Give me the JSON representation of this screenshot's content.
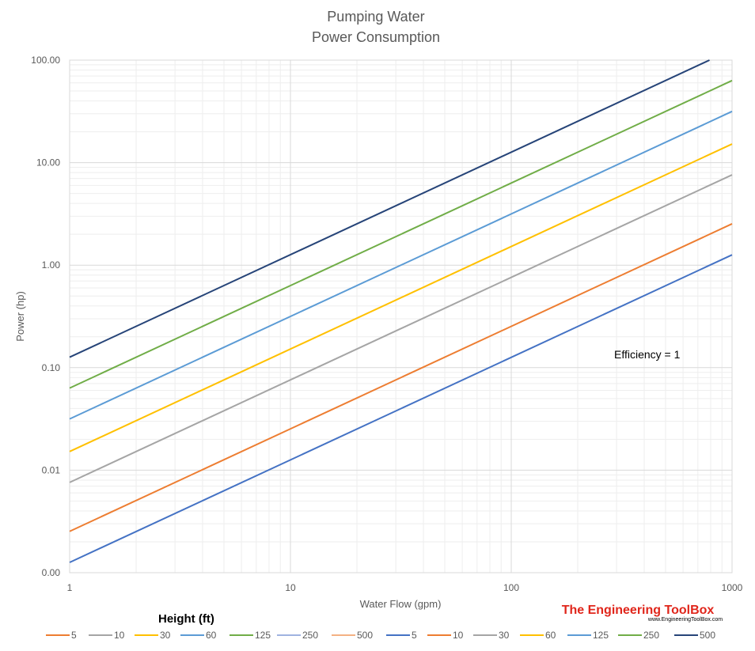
{
  "chart_data": {
    "type": "line",
    "title_lines": [
      "Pumping Water",
      "Power Consumption"
    ],
    "xlabel": "Water Flow (gpm)",
    "ylabel": "Power (hp)",
    "x_scale": "log",
    "y_scale": "log",
    "xlim": [
      1,
      1000
    ],
    "ylim": [
      0.001,
      100
    ],
    "x_ticks": [
      1,
      10,
      100,
      1000
    ],
    "x_tick_labels": [
      "1",
      "10",
      "100",
      "1000"
    ],
    "y_ticks": [
      0.001,
      0.01,
      0.1,
      1,
      10,
      100
    ],
    "y_tick_labels": [
      "0.00",
      "0.01",
      "0.10",
      "1.00",
      "10.00",
      "100.00"
    ],
    "grid": true,
    "annotation": "Efficiency = 1",
    "legend_title": "Height (ft)",
    "legend_position": "bottom",
    "legend_entries": [
      {
        "label": "5",
        "color": "#ed7d31"
      },
      {
        "label": "10",
        "color": "#a5a5a5"
      },
      {
        "label": "30",
        "color": "#ffc000"
      },
      {
        "label": "60",
        "color": "#5b9bd5"
      },
      {
        "label": "125",
        "color": "#70ad47"
      },
      {
        "label": "250",
        "color": "#9fb3e0"
      },
      {
        "label": "500",
        "color": "#f4b183"
      },
      {
        "label": "5",
        "color": "#4472c4"
      },
      {
        "label": "10",
        "color": "#ed7d31"
      },
      {
        "label": "30",
        "color": "#a5a5a5"
      },
      {
        "label": "60",
        "color": "#ffc000"
      },
      {
        "label": "125",
        "color": "#5b9bd5"
      },
      {
        "label": "250",
        "color": "#70ad47"
      },
      {
        "label": "500",
        "color": "#264478"
      }
    ],
    "series": [
      {
        "name": "5",
        "color": "#4472c4",
        "x": [
          1,
          1000
        ],
        "y": [
          0.00126,
          1.26
        ]
      },
      {
        "name": "10",
        "color": "#ed7d31",
        "x": [
          1,
          1000
        ],
        "y": [
          0.00253,
          2.53
        ]
      },
      {
        "name": "30",
        "color": "#a5a5a5",
        "x": [
          1,
          1000
        ],
        "y": [
          0.0076,
          7.6
        ]
      },
      {
        "name": "60",
        "color": "#ffc000",
        "x": [
          1,
          1000
        ],
        "y": [
          0.0152,
          15.2
        ]
      },
      {
        "name": "125",
        "color": "#5b9bd5",
        "x": [
          1,
          1000
        ],
        "y": [
          0.0316,
          31.6
        ]
      },
      {
        "name": "250",
        "color": "#70ad47",
        "x": [
          1,
          1000
        ],
        "y": [
          0.0632,
          63.2
        ]
      },
      {
        "name": "500",
        "color": "#264478",
        "x": [
          1,
          1000
        ],
        "y": [
          0.1265,
          126.5
        ]
      }
    ]
  },
  "branding": {
    "name": "The Engineering ToolBox",
    "url": "www.EngineeringToolBox.com"
  }
}
